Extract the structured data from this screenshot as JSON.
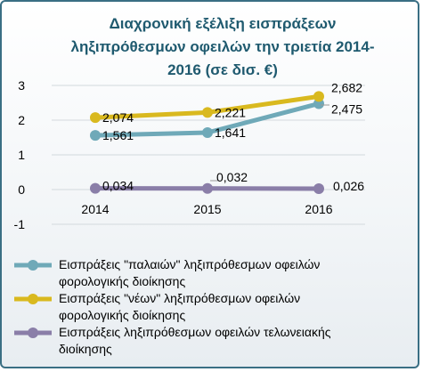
{
  "chart_data": {
    "type": "line",
    "title": "Διαχρονική εξέλιξη εισπράξεων ληξιπρόθεσμων οφειλών την τριετία 2014-2016 (σε δισ. €)",
    "title_lines": [
      "Διαχρονική εξέλιξη εισπράξεων",
      "ληξιπρόθεσμων οφειλών την τριετία 2014-",
      "2016 (σε δισ. €)"
    ],
    "categories": [
      "2014",
      "2015",
      "2016"
    ],
    "ylim": [
      -1,
      3
    ],
    "yticks": [
      "-1",
      "0",
      "1",
      "2",
      "3"
    ],
    "grid": true,
    "legend_position": "bottom",
    "series": [
      {
        "name": "Εισπράξεις \"παλαιών\" ληξιπρόθεσμων οφειλών φορολογικής διοίκησης",
        "name_lines": [
          "Εισπράξεις \"παλαιών\" ληξιπρόθεσμων οφειλών",
          "φορολογικής διοίκησης"
        ],
        "values": [
          1.561,
          1.641,
          2.475
        ],
        "labels": [
          "1,561",
          "1,641",
          "2,475"
        ],
        "color": "#6fa9b8"
      },
      {
        "name": "Εισπράξεις \"νέων\" ληξιπρόθεσμων οφειλών φορολογικής διοίκησης",
        "name_lines": [
          "Εισπράξεις \"νέων\" ληξιπρόθεσμων οφειλών",
          "φορολογικής διοίκησης"
        ],
        "values": [
          2.074,
          2.221,
          2.682
        ],
        "labels": [
          "2,074",
          "2,221",
          "2,682"
        ],
        "color": "#d9b91f"
      },
      {
        "name": "Εισπράξεις ληξιπρόθεσμων οφειλών τελωνειακής διοίκησης",
        "name_lines": [
          "Εισπράξεις ληξιπρόθεσμων οφειλών τελωνειακής",
          "διοίκησης"
        ],
        "values": [
          0.034,
          0.032,
          0.026
        ],
        "labels": [
          "0,034",
          "0,032",
          "0,026"
        ],
        "color": "#8a7ea8"
      }
    ]
  }
}
